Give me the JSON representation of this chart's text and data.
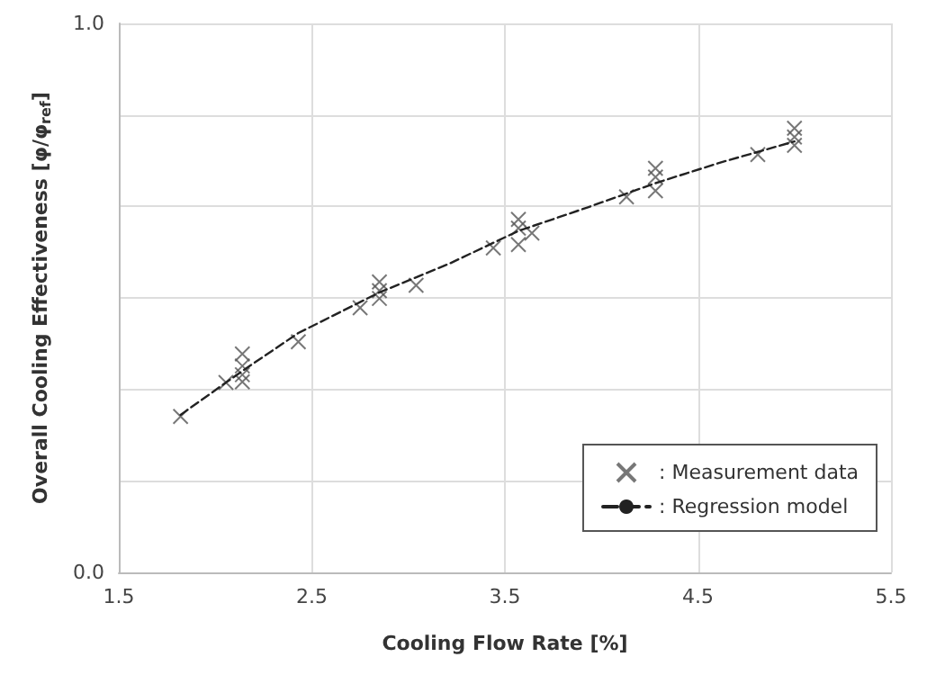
{
  "chart_data": {
    "type": "scatter",
    "xlabel": "Cooling Flow Rate [%]",
    "ylabel": "Overall Cooling Effectiveness [φ/φ$_{ref}$]",
    "xlim": [
      1.5,
      5.5
    ],
    "xticks": [
      1.5,
      2.5,
      3.5,
      4.5,
      5.5
    ],
    "ylim": [
      0,
      1
    ],
    "yticks": [
      {
        "value": 0,
        "label": "0.0"
      },
      {
        "value": 0.167,
        "label": null
      },
      {
        "value": 0.333,
        "label": null
      },
      {
        "value": 0.5,
        "label": null
      },
      {
        "value": 0.667,
        "label": null
      },
      {
        "value": 0.833,
        "label": null
      },
      {
        "value": 1,
        "label": "1.0"
      }
    ],
    "grid": true,
    "legend": "bottom right",
    "series": [
      {
        "name": ": Measurement data",
        "marker": "cross",
        "color": "#555555",
        "x": [
          1.82,
          2.055,
          2.14,
          2.14,
          2.14,
          2.14,
          2.43,
          2.75,
          2.85,
          2.85,
          2.85,
          3.04,
          3.44,
          3.57,
          3.57,
          3.57,
          3.64,
          4.13,
          4.28,
          4.28,
          4.28,
          4.81,
          5.0,
          5.0,
          5.0
        ],
        "values": [
          0.284,
          0.346,
          0.398,
          0.376,
          0.36,
          0.347,
          0.42,
          0.482,
          0.529,
          0.513,
          0.499,
          0.523,
          0.591,
          0.643,
          0.627,
          0.597,
          0.618,
          0.684,
          0.736,
          0.72,
          0.695,
          0.761,
          0.809,
          0.793,
          0.778
        ]
      },
      {
        "name": ": Regression model",
        "type": "line",
        "marker": "none",
        "line_style": "dashed",
        "color": "#222222",
        "x": [
          1.82,
          2.14,
          2.43,
          2.85,
          3.21,
          3.57,
          3.93,
          4.28,
          4.62,
          5.0
        ],
        "values": [
          0.287,
          0.367,
          0.436,
          0.51,
          0.562,
          0.622,
          0.665,
          0.709,
          0.747,
          0.785
        ]
      }
    ]
  }
}
